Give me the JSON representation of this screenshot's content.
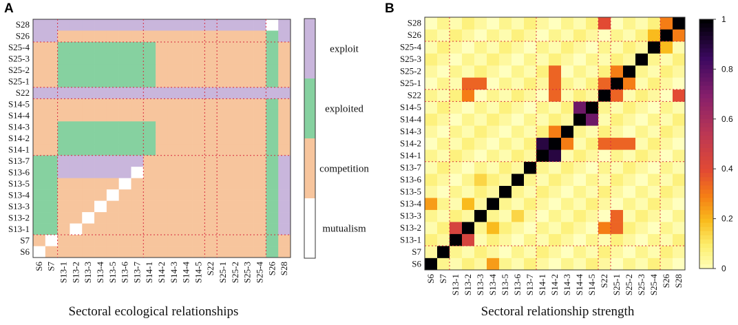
{
  "chart_data": [
    {
      "panel": "A",
      "type": "heatmap",
      "caption": "Sectoral ecological relationships",
      "sectors": [
        "S6",
        "S7",
        "S13-1",
        "S13-2",
        "S13-3",
        "S13-4",
        "S13-5",
        "S13-6",
        "S13-7",
        "S14-1",
        "S14-2",
        "S14-3",
        "S14-4",
        "S14-5",
        "S22",
        "S25-1",
        "S25-2",
        "S25-3",
        "S25-4",
        "S26",
        "S28"
      ],
      "categories": [
        "exploit",
        "exploited",
        "competition",
        "mutualism"
      ],
      "colors": {
        "exploit": "#c9b6dc",
        "exploited": "#86d1a0",
        "competition": "#f7c59d",
        "mutualism": "#ffffff"
      },
      "group_breaks_after": [
        "S7",
        "S13-7",
        "S14-5",
        "S22",
        "S25-4"
      ],
      "matrix_top_to_bottom": [
        "EEEEEEEEEEEEEEEEEEEME",
        "EECCCCCCCCCCCCCCCCCXE",
        "CCXXXXXXXXCCCCCCCCCXC",
        "CCXXXXXXXXCCCCCCCCCXC",
        "CCXXXXXXXXCCCCCCCCCXC",
        "CCXXXXXXXXCCCCCCCCCXC",
        "EEEEEEEEEEEEEEEEEEEEE",
        "CCCCCCCCCCCCCCCCCCCXC",
        "CCCCCCCCCCCCCCCCCCCXC",
        "CCXXXXXXXXCCCCCCCCCXC",
        "CCXXXXXXXXCCCCCCCCCXC",
        "CCXXXXXXXXCCCCCCCCCXC",
        "XXEEEEEEECCCCCCCCCCXE",
        "XXEEEEEEMCCCCCCCCCCXE",
        "XXCCCCCMCCCCCCCCCCCXE",
        "XXCCCCMCCCCCCCCCCCCXE",
        "XXCCCMCCCCCCCCCCCCCXE",
        "XXCCMCCCCCCCCCCCCCCXE",
        "XXCMCCCCCCCCCCCCCCCXE",
        "CMCCCCCCCCCCCCCCCCCXC",
        "MCCCCCCCCCCCCCCCCCCXC"
      ]
    },
    {
      "panel": "B",
      "type": "heatmap",
      "caption": "Sectoral relationship strength",
      "sectors": [
        "S6",
        "S7",
        "S13-1",
        "S13-2",
        "S13-3",
        "S13-4",
        "S13-5",
        "S13-6",
        "S13-7",
        "S14-1",
        "S14-2",
        "S14-3",
        "S14-4",
        "S14-5",
        "S22",
        "S25-1",
        "S25-2",
        "S25-3",
        "S25-4",
        "S26",
        "S28"
      ],
      "colorbar": {
        "min": 0,
        "max": 1,
        "ticks": [
          "0",
          "0.2",
          "0.4",
          "0.6",
          "0.8",
          "1"
        ]
      },
      "group_breaks_after": [
        "S7",
        "S13-7",
        "S14-5",
        "S22",
        "S25-4"
      ],
      "diagonal": 1,
      "strong_pairs": [
        [
          "S13-1",
          "S13-2",
          0.45
        ],
        [
          "S13-2",
          "S13-4",
          0.2
        ],
        [
          "S13-3",
          "S13-6",
          0.15
        ],
        [
          "S14-1",
          "S14-2",
          0.9
        ],
        [
          "S14-2",
          "S14-3",
          0.3
        ],
        [
          "S14-4",
          "S14-5",
          0.75
        ],
        [
          "S22",
          "S13-2",
          0.3
        ],
        [
          "S22",
          "S14-2",
          0.35
        ],
        [
          "S22",
          "S25-1",
          0.35
        ],
        [
          "S25-1",
          "S25-2",
          0.3
        ],
        [
          "S25-1",
          "S13-3",
          0.35
        ],
        [
          "S25-2",
          "S14-2",
          0.35
        ],
        [
          "S25-1",
          "S14-2",
          0.35
        ],
        [
          "S26",
          "S25-4",
          0.2
        ],
        [
          "S28",
          "S22",
          0.4
        ],
        [
          "S26",
          "S28",
          0.3
        ],
        [
          "S13-2",
          "S25-1",
          0.35
        ],
        [
          "S6",
          "S13-4",
          0.25
        ]
      ]
    }
  ]
}
